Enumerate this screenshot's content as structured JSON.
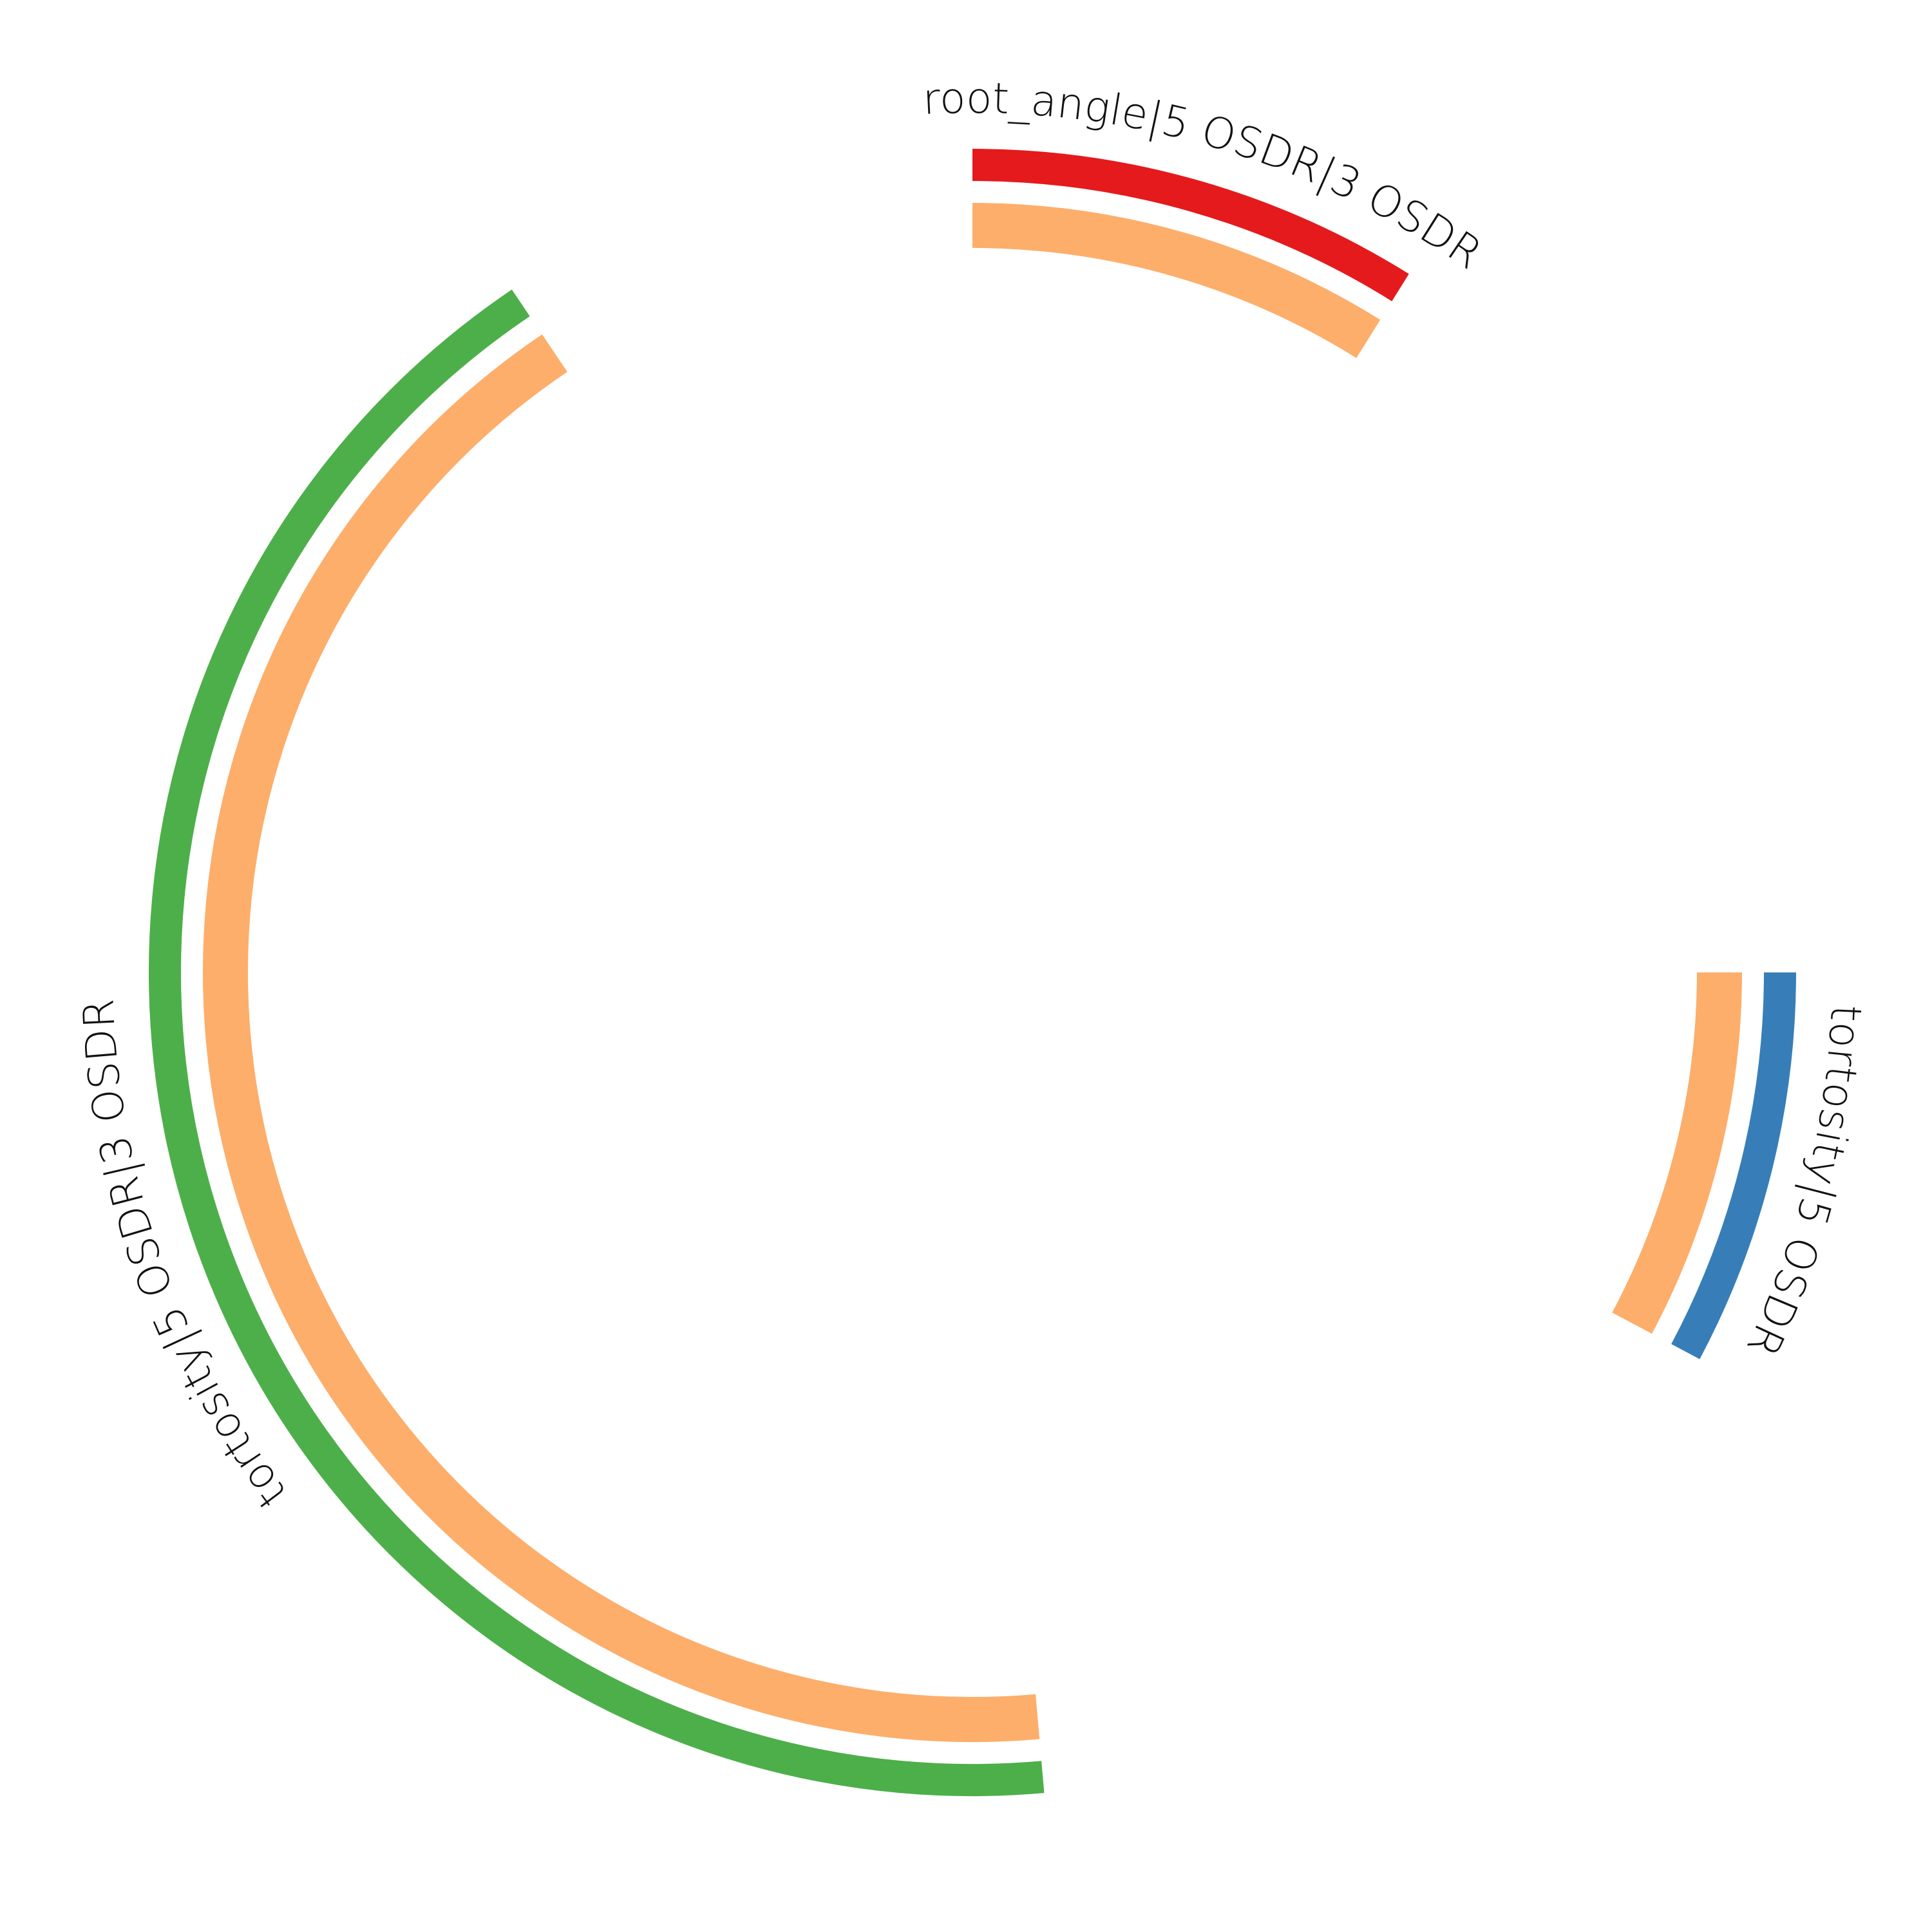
{
  "chart_data": {
    "type": "arc",
    "segments": [
      {
        "label": "root_angle|5 OSDR|3 OSDR",
        "start_deg": 0,
        "end_deg": 32,
        "bars": [
          {
            "ring": "outer",
            "color": "#e41a1c"
          },
          {
            "ring": "inner",
            "color": "#fdae6b"
          }
        ]
      },
      {
        "label": "tortosity|5 OSDR",
        "start_deg": 90,
        "end_deg": 118,
        "bars": [
          {
            "ring": "outer",
            "color": "#377eb8"
          },
          {
            "ring": "inner",
            "color": "#fdae6b"
          }
        ]
      },
      {
        "label": "tortosity|5 OSDR|3 OSDR",
        "start_deg": 175,
        "end_deg": 326,
        "bars": [
          {
            "ring": "outer",
            "color": "#4daf4a"
          },
          {
            "ring": "inner",
            "color": "#fdae6b"
          }
        ]
      }
    ]
  }
}
